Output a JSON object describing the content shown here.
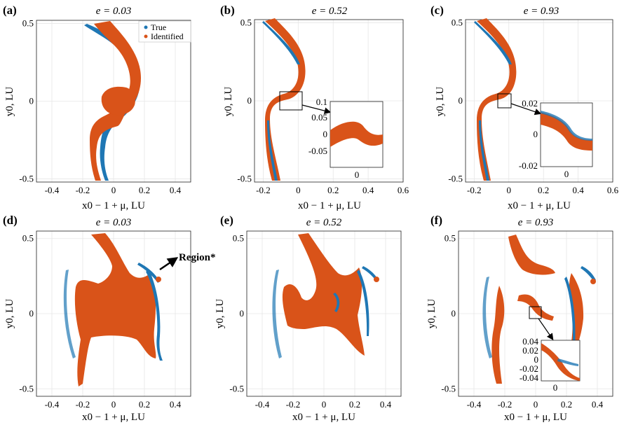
{
  "colors": {
    "true": "#1f77b4",
    "identified": "#d95319",
    "grid": "#e6e6e6",
    "axis": "#222222"
  },
  "chart_data": [
    {
      "panel": "(a)",
      "type": "scatter",
      "title": "e = 0.03",
      "xlabel": "x0 − 1 + μ, LU",
      "ylabel": "y0, LU",
      "xlim": [
        -0.5,
        0.5
      ],
      "ylim": [
        -0.52,
        0.52
      ],
      "xticks": [
        "-0.4",
        "-0.2",
        "0",
        "0.2",
        "0.4"
      ],
      "xtick_values": [
        -0.4,
        -0.2,
        0,
        0.2,
        0.4
      ],
      "yticks": [
        "-0.5",
        "0",
        "0.5"
      ],
      "ytick_values": [
        -0.5,
        0,
        0.5
      ],
      "legend": [
        "True",
        "Identified"
      ],
      "legend_position": "top-right",
      "series": [
        {
          "name": "True",
          "region": "thin curved ribbon from (-0.2, 0.48) through (0.15, 0.2) to (-0.05, -0.5)"
        },
        {
          "name": "Identified",
          "region": "curved band with central blob, same manifold"
        }
      ]
    },
    {
      "panel": "(b)",
      "type": "scatter",
      "title": "e = 0.52",
      "xlabel": "x0 − 1 + μ, LU",
      "ylabel": "y0, LU",
      "xlim": [
        -0.25,
        0.6
      ],
      "ylim": [
        -0.52,
        0.52
      ],
      "xticks": [
        "-0.2",
        "0",
        "0.2",
        "0.4",
        "0.6"
      ],
      "xtick_values": [
        -0.2,
        0,
        0.2,
        0.4,
        0.6
      ],
      "yticks": [
        "-0.5",
        "0",
        "0.5"
      ],
      "ytick_values": [
        -0.5,
        0,
        0.5
      ],
      "inset": {
        "yticks": [
          "0.1",
          "0.05",
          "0",
          "-0.05"
        ],
        "xticks": [
          "0"
        ]
      }
    },
    {
      "panel": "(c)",
      "type": "scatter",
      "title": "e = 0.93",
      "xlabel": "x0 − 1 + μ, LU",
      "ylabel": "y0, LU",
      "xlim": [
        -0.25,
        0.6
      ],
      "ylim": [
        -0.52,
        0.52
      ],
      "xticks": [
        "-0.2",
        "0",
        "0.2",
        "0.4",
        "0.6"
      ],
      "xtick_values": [
        -0.2,
        0,
        0.2,
        0.4,
        0.6
      ],
      "yticks": [
        "-0.5",
        "0",
        "0.5"
      ],
      "ytick_values": [
        -0.5,
        0,
        0.5
      ],
      "inset": {
        "yticks": [
          "0.02",
          "0",
          "-0.02"
        ],
        "xticks": [
          "0"
        ]
      }
    },
    {
      "panel": "(d)",
      "type": "scatter",
      "title": "e = 0.03",
      "xlabel": "x0 − 1 + μ, LU",
      "ylabel": "y0, LU",
      "xlim": [
        -0.5,
        0.5
      ],
      "ylim": [
        -0.55,
        0.55
      ],
      "xticks": [
        "-0.4",
        "-0.2",
        "0",
        "0.2",
        "0.4"
      ],
      "xtick_values": [
        -0.4,
        -0.2,
        0,
        0.2,
        0.4
      ],
      "yticks": [
        "-0.5",
        "0",
        "0.5"
      ],
      "ytick_values": [
        -0.5,
        0,
        0.5
      ],
      "annotation": "Region*"
    },
    {
      "panel": "(e)",
      "type": "scatter",
      "title": "e = 0.52",
      "xlabel": "x0 − 1 + μ, LU",
      "ylabel": "y0, LU",
      "xlim": [
        -0.5,
        0.5
      ],
      "ylim": [
        -0.55,
        0.55
      ],
      "xticks": [
        "-0.4",
        "-0.2",
        "0",
        "0.2",
        "0.4"
      ],
      "xtick_values": [
        -0.4,
        -0.2,
        0,
        0.2,
        0.4
      ],
      "yticks": [
        "-0.5",
        "0",
        "0.5"
      ],
      "ytick_values": [
        -0.5,
        0,
        0.5
      ]
    },
    {
      "panel": "(f)",
      "type": "scatter",
      "title": "e = 0.93",
      "xlabel": "x0 − 1 + μ, LU",
      "ylabel": "y0, LU",
      "xlim": [
        -0.5,
        0.5
      ],
      "ylim": [
        -0.55,
        0.55
      ],
      "xticks": [
        "-0.4",
        "-0.2",
        "0",
        "0.2",
        "0.4"
      ],
      "xtick_values": [
        -0.4,
        -0.2,
        0,
        0.2,
        0.4
      ],
      "yticks": [
        "-0.5",
        "0",
        "0.5"
      ],
      "ytick_values": [
        -0.5,
        0,
        0.5
      ],
      "inset": {
        "yticks": [
          "0.04",
          "0.02",
          "0",
          "-0.02",
          "-0.04"
        ],
        "xticks": [
          "0"
        ]
      }
    }
  ]
}
